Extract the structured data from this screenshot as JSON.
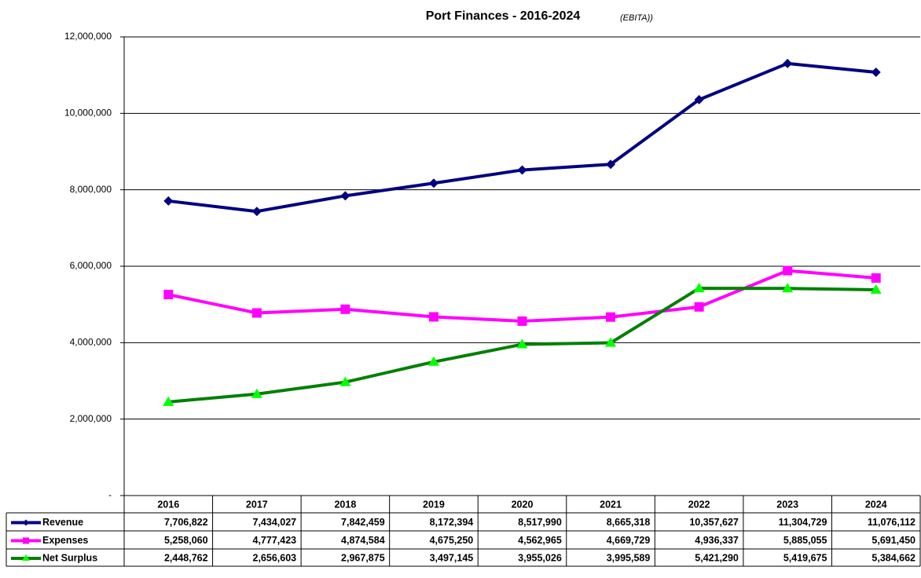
{
  "chart_data": {
    "type": "line",
    "title": "Port Finances - 2016-2024",
    "subtitle": "(EBITA))",
    "categories": [
      "2016",
      "2017",
      "2018",
      "2019",
      "2020",
      "2021",
      "2022",
      "2023",
      "2024"
    ],
    "series": [
      {
        "name": "Revenue",
        "color": "#000080",
        "marker": "diamond",
        "values": [
          7706822,
          7434027,
          7842459,
          8172394,
          8517990,
          8665318,
          10357627,
          11304729,
          11076112
        ],
        "value_labels": [
          "7,706,822",
          "7,434,027",
          "7,842,459",
          "8,172,394",
          "8,517,990",
          "8,665,318",
          "10,357,627",
          "11,304,729",
          "11,076,112"
        ]
      },
      {
        "name": "Expenses",
        "color": "#ff00ff",
        "marker": "square",
        "values": [
          5258060,
          4777423,
          4874584,
          4675250,
          4562965,
          4669729,
          4936337,
          5885055,
          5691450
        ],
        "value_labels": [
          "5,258,060",
          "4,777,423",
          "4,874,584",
          "4,675,250",
          "4,562,965",
          "4,669,729",
          "4,936,337",
          "5,885,055",
          "5,691,450"
        ]
      },
      {
        "name": "Net Surplus",
        "color": "#008000",
        "marker_color": "#00ff00",
        "marker": "triangle",
        "values": [
          2448762,
          2656603,
          2967875,
          3497145,
          3955026,
          3995589,
          5421290,
          5419675,
          5384662
        ],
        "value_labels": [
          "2,448,762",
          "2,656,603",
          "2,967,875",
          "3,497,145",
          "3,955,026",
          "3,995,589",
          "5,421,290",
          "5,419,675",
          "5,384,662"
        ]
      }
    ],
    "ylim": [
      0,
      12000000
    ],
    "yticks": [
      {
        "value": 0,
        "label": "-"
      },
      {
        "value": 2000000,
        "label": "2,000,000"
      },
      {
        "value": 4000000,
        "label": "4,000,000"
      },
      {
        "value": 6000000,
        "label": "6,000,000"
      },
      {
        "value": 8000000,
        "label": "8,000,000"
      },
      {
        "value": 10000000,
        "label": "10,000,000"
      },
      {
        "value": 12000000,
        "label": "12,000,000"
      }
    ],
    "grid": true
  }
}
